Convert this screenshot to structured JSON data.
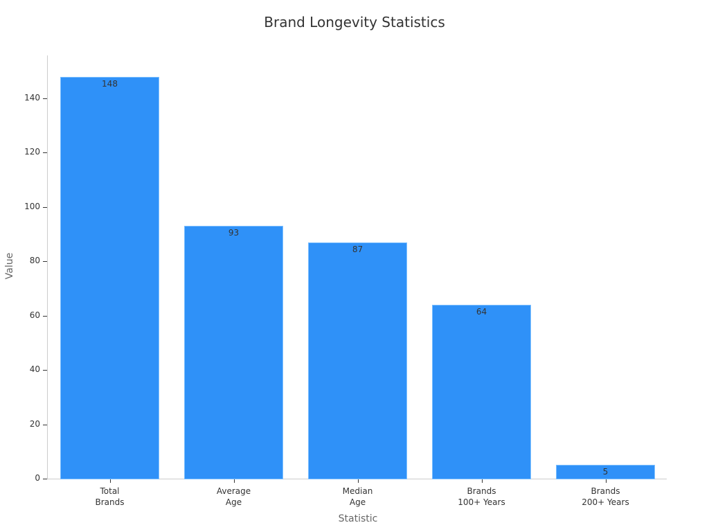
{
  "chart_data": {
    "type": "bar",
    "title": "Brand Longevity Statistics",
    "xlabel": "Statistic",
    "ylabel": "Value",
    "categories": [
      "Total\nBrands",
      "Average\nAge",
      "Median\nAge",
      "Brands\n100+ Years",
      "Brands\n200+ Years"
    ],
    "values": [
      148,
      93,
      87,
      64,
      5
    ],
    "data_labels": [
      "148",
      "93",
      "87",
      "64",
      "5"
    ],
    "yticks": [
      "0",
      "20",
      "40",
      "60",
      "80",
      "100",
      "120",
      "140"
    ],
    "ylim": [
      0,
      155.4
    ],
    "grid": false,
    "legend": null,
    "bar_color": "#2f91f8"
  }
}
